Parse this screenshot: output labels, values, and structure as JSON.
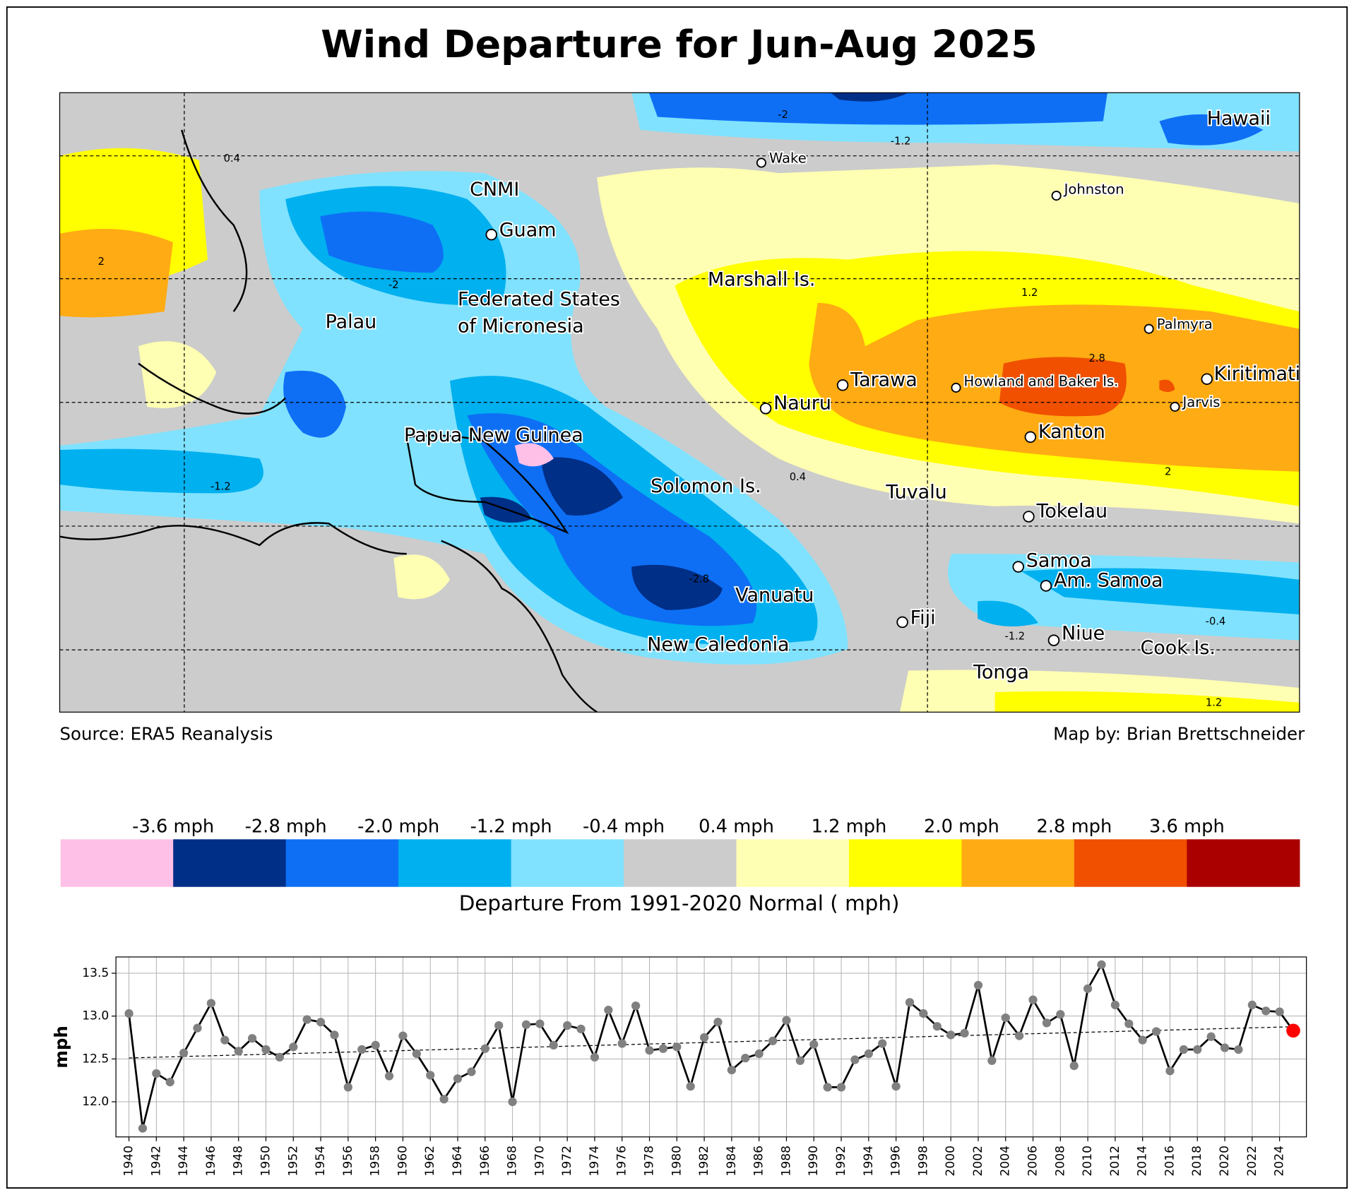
{
  "title": "Wind Departure for Jun-Aug 2025",
  "map": {
    "places": [
      "Hawaii",
      "Wake",
      "CNMI",
      "Guam",
      "Johnston",
      "Marshall Is.",
      "Federated States",
      "of Micronesia",
      "Palau",
      "Palmyra",
      "Tarawa",
      "Howland and Baker Is.",
      "Kiritimati",
      "Nauru",
      "Jarvis",
      "Kanton",
      "Papua New Guinea",
      "Solomon Is.",
      "Tuvalu",
      "Tokelau",
      "Samoa",
      "Am. Samoa",
      "Vanuatu",
      "Fiji",
      "Niue",
      "New Caledonia",
      "Cook Is.",
      "Tonga"
    ],
    "contour_labels": [
      "-2",
      "-1.2",
      "1.2",
      "2.8",
      "2",
      "0.4",
      "-2.8",
      "-1.2",
      "-0.4",
      "1.2",
      "-1.2",
      "2",
      "-2",
      "0.4"
    ]
  },
  "source": "Source: ERA5 Reanalysis",
  "credit": "Map by: Brian Brettschneider",
  "colorbar": {
    "colors": [
      "#ffc0e8",
      "#002f87",
      "#0e6ff5",
      "#00b0ef",
      "#80e2ff",
      "#cccccc",
      "#ffffb3",
      "#ffff00",
      "#ffab13",
      "#f05000",
      "#aa0000"
    ],
    "labels": [
      "-3.6 mph",
      "-2.8 mph",
      "-2.0 mph",
      "-1.2 mph",
      "-0.4 mph",
      "0.4 mph",
      "1.2 mph",
      "2.0 mph",
      "2.8 mph",
      "3.6 mph"
    ],
    "title": "Departure From 1991-2020 Normal ( mph)"
  },
  "chart_data": {
    "type": "line",
    "y_label": "mph",
    "x": [
      1940,
      1941,
      1942,
      1943,
      1944,
      1945,
      1946,
      1947,
      1948,
      1949,
      1950,
      1951,
      1952,
      1953,
      1954,
      1955,
      1956,
      1957,
      1958,
      1959,
      1960,
      1961,
      1962,
      1963,
      1964,
      1965,
      1966,
      1967,
      1968,
      1969,
      1970,
      1971,
      1972,
      1973,
      1974,
      1975,
      1976,
      1977,
      1978,
      1979,
      1980,
      1981,
      1982,
      1983,
      1984,
      1985,
      1986,
      1987,
      1988,
      1989,
      1990,
      1991,
      1992,
      1993,
      1994,
      1995,
      1996,
      1997,
      1998,
      1999,
      2000,
      2001,
      2002,
      2003,
      2004,
      2005,
      2006,
      2007,
      2008,
      2009,
      2010,
      2011,
      2012,
      2013,
      2014,
      2015,
      2016,
      2017,
      2018,
      2019,
      2020,
      2021,
      2022,
      2023,
      2024,
      2025
    ],
    "values": [
      13.03,
      11.69,
      12.33,
      12.23,
      12.57,
      12.86,
      13.15,
      12.72,
      12.59,
      12.74,
      12.61,
      12.52,
      12.64,
      12.96,
      12.93,
      12.78,
      12.17,
      12.61,
      12.66,
      12.3,
      12.77,
      12.56,
      12.31,
      12.03,
      12.27,
      12.35,
      12.62,
      12.89,
      12.0,
      12.9,
      12.91,
      12.66,
      12.89,
      12.85,
      12.52,
      13.07,
      12.68,
      13.12,
      12.6,
      12.62,
      12.64,
      12.18,
      12.75,
      12.93,
      12.37,
      12.51,
      12.56,
      12.71,
      12.95,
      12.48,
      12.67,
      12.17,
      12.17,
      12.49,
      12.56,
      12.68,
      12.18,
      13.16,
      13.03,
      12.88,
      12.78,
      12.8,
      13.36,
      12.48,
      12.98,
      12.77,
      13.19,
      12.92,
      13.02,
      12.42,
      13.32,
      13.6,
      13.13,
      12.91,
      12.72,
      12.82,
      12.36,
      12.61,
      12.61,
      12.76,
      12.63,
      12.61,
      13.13,
      13.06,
      13.05,
      12.83
    ],
    "color": "#000000",
    "marker_color": "#808080",
    "highlight_color": "#ff0000",
    "trend_color": "#000000",
    "xlim": [
      1939.05,
      2025.96
    ],
    "ylim": [
      11.59,
      13.69
    ],
    "xticks": [
      1940,
      1942,
      1944,
      1946,
      1948,
      1950,
      1952,
      1954,
      1956,
      1958,
      1960,
      1962,
      1964,
      1966,
      1968,
      1970,
      1972,
      1974,
      1976,
      1978,
      1980,
      1982,
      1984,
      1986,
      1988,
      1990,
      1992,
      1994,
      1996,
      1998,
      2000,
      2002,
      2004,
      2006,
      2008,
      2010,
      2012,
      2014,
      2016,
      2018,
      2020,
      2022,
      2024
    ],
    "yticks": [
      {
        "value": 12,
        "label": "12.0"
      },
      12.5,
      {
        "value": 13,
        "label": "13.0"
      },
      13.5
    ],
    "grid": true
  }
}
